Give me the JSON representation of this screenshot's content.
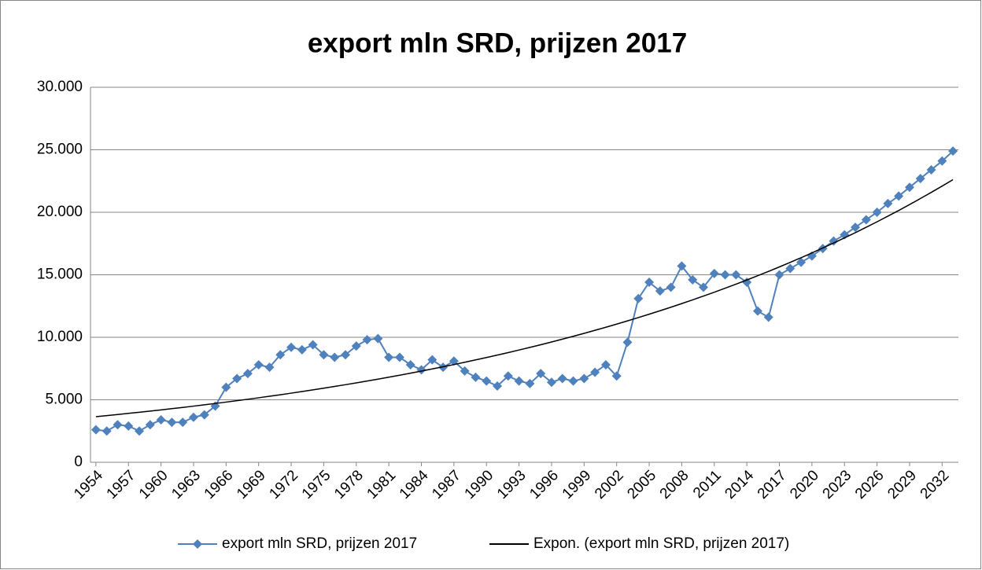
{
  "chart_data": {
    "type": "line",
    "title": "export mln SRD, prijzen 2017",
    "x": [
      1954,
      1955,
      1956,
      1957,
      1958,
      1959,
      1960,
      1961,
      1962,
      1963,
      1964,
      1965,
      1966,
      1967,
      1968,
      1969,
      1970,
      1971,
      1972,
      1973,
      1974,
      1975,
      1976,
      1977,
      1978,
      1979,
      1980,
      1981,
      1982,
      1983,
      1984,
      1985,
      1986,
      1987,
      1988,
      1989,
      1990,
      1991,
      1992,
      1993,
      1994,
      1995,
      1996,
      1997,
      1998,
      1999,
      2000,
      2001,
      2002,
      2003,
      2004,
      2005,
      2006,
      2007,
      2008,
      2009,
      2010,
      2011,
      2012,
      2013,
      2014,
      2015,
      2016,
      2017,
      2018,
      2019,
      2020,
      2021,
      2022,
      2023,
      2024,
      2025,
      2026,
      2027,
      2028,
      2029,
      2030,
      2031,
      2032,
      2033
    ],
    "series": [
      {
        "name": "export mln SRD, prijzen 2017",
        "color": "#4f81bd",
        "marker": "diamond",
        "values": [
          2600,
          2500,
          3000,
          2900,
          2500,
          3000,
          3400,
          3200,
          3200,
          3600,
          3800,
          4500,
          6000,
          6700,
          7100,
          7800,
          7600,
          8600,
          9200,
          9000,
          9400,
          8600,
          8400,
          8600,
          9300,
          9800,
          9900,
          8400,
          8400,
          7800,
          7400,
          8200,
          7600,
          8100,
          7300,
          6800,
          6500,
          6100,
          6900,
          6500,
          6300,
          7100,
          6400,
          6700,
          6500,
          6700,
          7200,
          7800,
          6900,
          9600,
          13100,
          14400,
          13700,
          14000,
          15700,
          14600,
          14000,
          15100,
          15000,
          15000,
          14400,
          12100,
          11600,
          15000,
          15500,
          16000,
          16500,
          17100,
          17700,
          18200,
          18800,
          19400,
          20000,
          20700,
          21300,
          22000,
          22700,
          23400,
          24100,
          24900
        ]
      },
      {
        "name": "Expon. (export mln SRD, prijzen 2017)",
        "color": "#000000",
        "marker": "none",
        "values": [
          3650,
          3735,
          3822,
          3912,
          4003,
          4097,
          4192,
          4290,
          4390,
          4493,
          4598,
          4705,
          4815,
          4928,
          5043,
          5161,
          5281,
          5404,
          5531,
          5660,
          5792,
          5927,
          6066,
          6207,
          6352,
          6501,
          6652,
          6808,
          6967,
          7129,
          7296,
          7466,
          7641,
          7819,
          8002,
          8189,
          8380,
          8576,
          8776,
          8981,
          9190,
          9405,
          9625,
          9849,
          10079,
          10315,
          10556,
          10802,
          11054,
          11313,
          11577,
          11847,
          12124,
          12407,
          12697,
          12993,
          13297,
          13607,
          13925,
          14250,
          14583,
          14924,
          15272,
          15629,
          15994,
          16367,
          16750,
          17141,
          17541,
          17951,
          18370,
          18799,
          19238,
          19688,
          20147,
          20618,
          21099,
          21592,
          22096,
          22612
        ]
      }
    ],
    "xlim": [
      1953.5,
      2033.5
    ],
    "xticks": [
      1954,
      1957,
      1960,
      1963,
      1966,
      1969,
      1972,
      1975,
      1978,
      1981,
      1984,
      1987,
      1990,
      1993,
      1996,
      1999,
      2002,
      2005,
      2008,
      2011,
      2014,
      2017,
      2020,
      2023,
      2026,
      2029,
      2032
    ],
    "ylim": [
      0,
      30000
    ],
    "yticks": [
      0,
      {
        "value": 5000,
        "label": "5.000"
      },
      {
        "value": 10000,
        "label": "10.000"
      },
      {
        "value": 15000,
        "label": "15.000"
      },
      {
        "value": 20000,
        "label": "20.000"
      },
      {
        "value": 25000,
        "label": "25.000"
      },
      {
        "value": 30000,
        "label": "30.000"
      }
    ],
    "grid": true,
    "legend": "bottom"
  }
}
